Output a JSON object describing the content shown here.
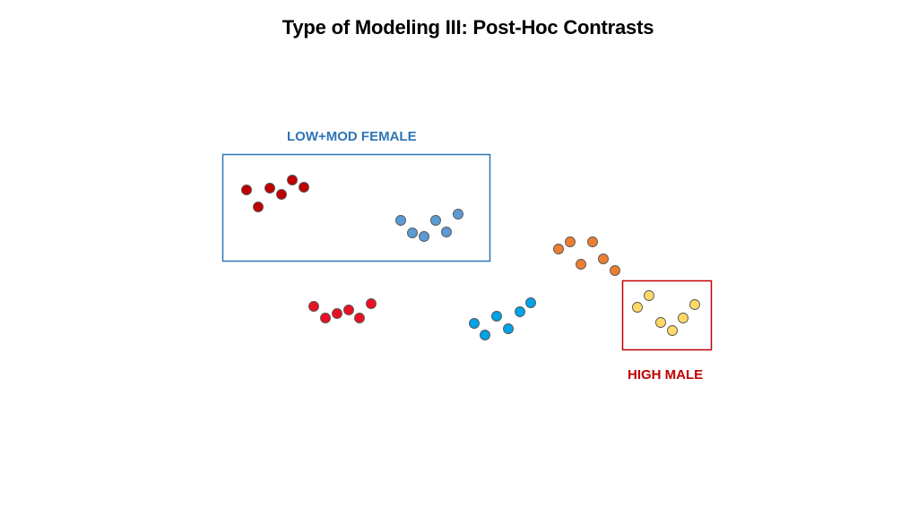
{
  "slide": {
    "title": "Type of Modeling III:  Post-Hoc Contrasts"
  },
  "boxes": {
    "low_mod_female": {
      "label": "LOW+MOD FEMALE",
      "color": "#2e75b6"
    },
    "high_male": {
      "label": "HIGH MALE",
      "color": "#c00000"
    }
  },
  "groups": [
    {
      "name": "dark-red-cluster",
      "color": "#c00000"
    },
    {
      "name": "steel-blue-cluster",
      "color": "#5b9bd5"
    },
    {
      "name": "red-cluster",
      "color": "#e81123"
    },
    {
      "name": "sky-blue-cluster",
      "color": "#00a2e8"
    },
    {
      "name": "orange-cluster",
      "color": "#ed7d31"
    },
    {
      "name": "yellow-cluster",
      "color": "#ffd966"
    }
  ]
}
